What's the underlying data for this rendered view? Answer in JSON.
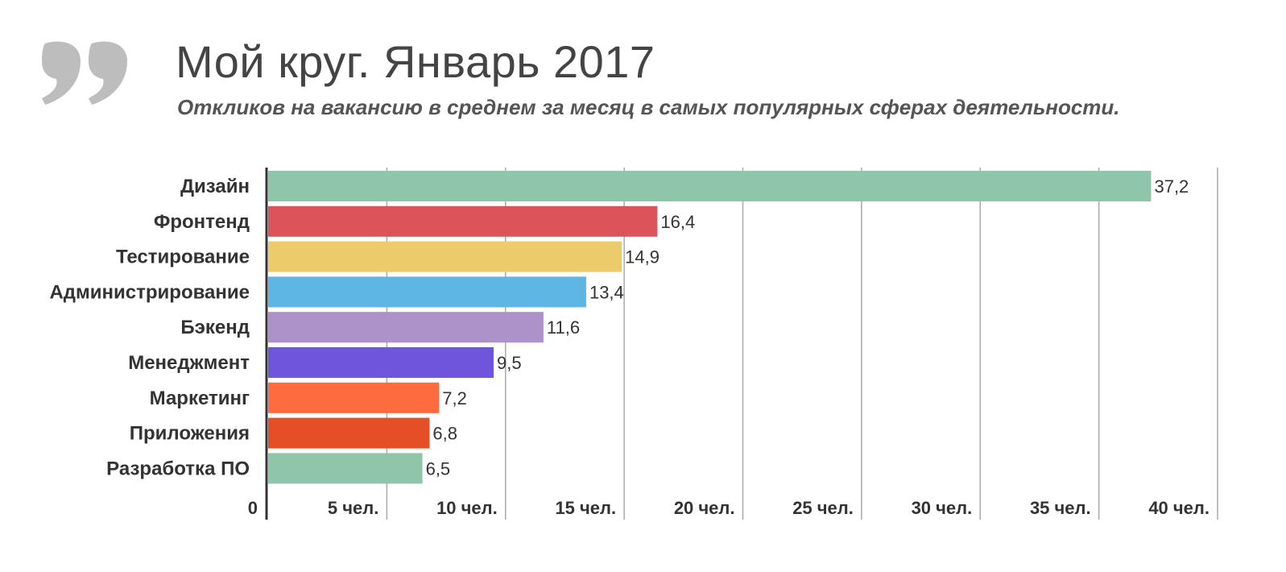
{
  "header": {
    "title": "Мой круг. Январь 2017",
    "subtitle": "Откликов на вакансию в среднем за месяц в самых популярных сферах деятельности."
  },
  "chart_data": {
    "type": "bar",
    "orientation": "horizontal",
    "categories": [
      "Дизайн",
      "Фронтенд",
      "Тестирование",
      "Администрирование",
      "Бэкенд",
      "Менеджмент",
      "Маркетинг",
      "Приложения",
      "Разработка ПО"
    ],
    "values": [
      37.2,
      16.4,
      14.9,
      13.4,
      11.6,
      9.5,
      7.2,
      6.8,
      6.5
    ],
    "value_labels": [
      "37,2",
      "16,4",
      "14,9",
      "13,4",
      "11,6",
      "9,5",
      "7,2",
      "6,8",
      "6,5"
    ],
    "colors": [
      "#8fc5a8",
      "#dc5459",
      "#eccb6b",
      "#5eb6e4",
      "#ac92c9",
      "#6e55db",
      "#fd6b3e",
      "#e54e27",
      "#8fc5a8"
    ],
    "tick_values": [
      0,
      5,
      10,
      15,
      20,
      25,
      30,
      35,
      40
    ],
    "tick_labels": [
      "0",
      "5 чел.",
      "10 чел.",
      "15 чел.",
      "20 чел.",
      "25 чел.",
      "30 чел.",
      "35 чел.",
      "40 чел."
    ],
    "xlim": [
      0,
      40
    ],
    "grid": true,
    "title": "Мой круг. Январь 2017",
    "xlabel": "",
    "ylabel": ""
  }
}
